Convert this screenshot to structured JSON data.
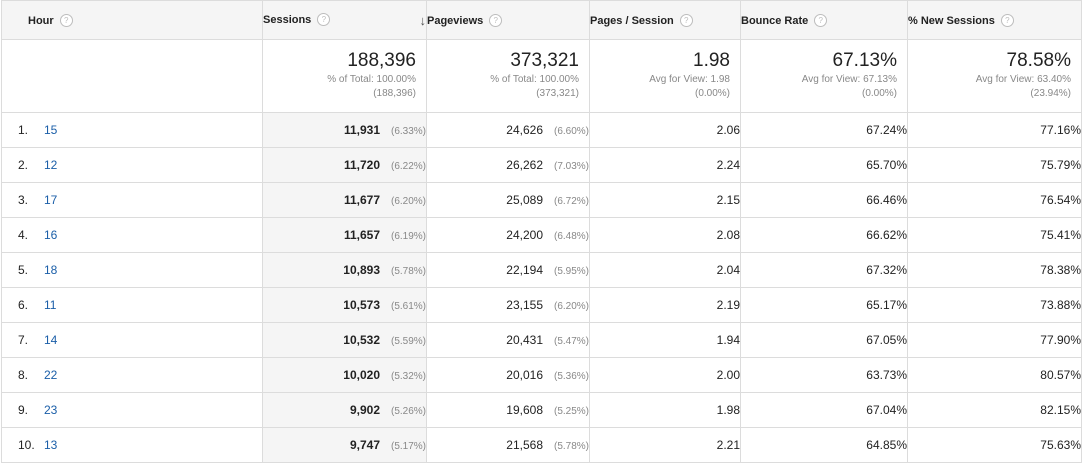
{
  "headers": {
    "hour": "Hour",
    "sessions": "Sessions",
    "sessions_sort": "↓",
    "pageviews": "Pageviews",
    "pages_per_session": "Pages / Session",
    "bounce_rate": "Bounce Rate",
    "new_sessions": "% New Sessions",
    "help_glyph": "?"
  },
  "totals": {
    "sessions": {
      "value": "188,396",
      "line1": "% of Total: 100.00%",
      "line2": "(188,396)"
    },
    "pageviews": {
      "value": "373,321",
      "line1": "% of Total: 100.00%",
      "line2": "(373,321)"
    },
    "pages_per_session": {
      "value": "1.98",
      "line1": "Avg for View: 1.98",
      "line2": "(0.00%)"
    },
    "bounce_rate": {
      "value": "67.13%",
      "line1": "Avg for View: 67.13%",
      "line2": "(0.00%)"
    },
    "new_sessions": {
      "value": "78.58%",
      "line1": "Avg for View: 63.40%",
      "line2": "(23.94%)"
    }
  },
  "rows": [
    {
      "idx": "1.",
      "hour": "15",
      "sessions": "11,931",
      "sessions_pct": "(6.33%)",
      "pageviews": "24,626",
      "pageviews_pct": "(6.60%)",
      "pps": "2.06",
      "bounce": "67.24%",
      "new": "77.16%"
    },
    {
      "idx": "2.",
      "hour": "12",
      "sessions": "11,720",
      "sessions_pct": "(6.22%)",
      "pageviews": "26,262",
      "pageviews_pct": "(7.03%)",
      "pps": "2.24",
      "bounce": "65.70%",
      "new": "75.79%"
    },
    {
      "idx": "3.",
      "hour": "17",
      "sessions": "11,677",
      "sessions_pct": "(6.20%)",
      "pageviews": "25,089",
      "pageviews_pct": "(6.72%)",
      "pps": "2.15",
      "bounce": "66.46%",
      "new": "76.54%"
    },
    {
      "idx": "4.",
      "hour": "16",
      "sessions": "11,657",
      "sessions_pct": "(6.19%)",
      "pageviews": "24,200",
      "pageviews_pct": "(6.48%)",
      "pps": "2.08",
      "bounce": "66.62%",
      "new": "75.41%"
    },
    {
      "idx": "5.",
      "hour": "18",
      "sessions": "10,893",
      "sessions_pct": "(5.78%)",
      "pageviews": "22,194",
      "pageviews_pct": "(5.95%)",
      "pps": "2.04",
      "bounce": "67.32%",
      "new": "78.38%"
    },
    {
      "idx": "6.",
      "hour": "11",
      "sessions": "10,573",
      "sessions_pct": "(5.61%)",
      "pageviews": "23,155",
      "pageviews_pct": "(6.20%)",
      "pps": "2.19",
      "bounce": "65.17%",
      "new": "73.88%"
    },
    {
      "idx": "7.",
      "hour": "14",
      "sessions": "10,532",
      "sessions_pct": "(5.59%)",
      "pageviews": "20,431",
      "pageviews_pct": "(5.47%)",
      "pps": "1.94",
      "bounce": "67.05%",
      "new": "77.90%"
    },
    {
      "idx": "8.",
      "hour": "22",
      "sessions": "10,020",
      "sessions_pct": "(5.32%)",
      "pageviews": "20,016",
      "pageviews_pct": "(5.36%)",
      "pps": "2.00",
      "bounce": "63.73%",
      "new": "80.57%"
    },
    {
      "idx": "9.",
      "hour": "23",
      "sessions": "9,902",
      "sessions_pct": "(5.26%)",
      "pageviews": "19,608",
      "pageviews_pct": "(5.25%)",
      "pps": "1.98",
      "bounce": "67.04%",
      "new": "82.15%"
    },
    {
      "idx": "10.",
      "hour": "13",
      "sessions": "9,747",
      "sessions_pct": "(5.17%)",
      "pageviews": "21,568",
      "pageviews_pct": "(5.78%)",
      "pps": "2.21",
      "bounce": "64.85%",
      "new": "75.63%"
    }
  ]
}
